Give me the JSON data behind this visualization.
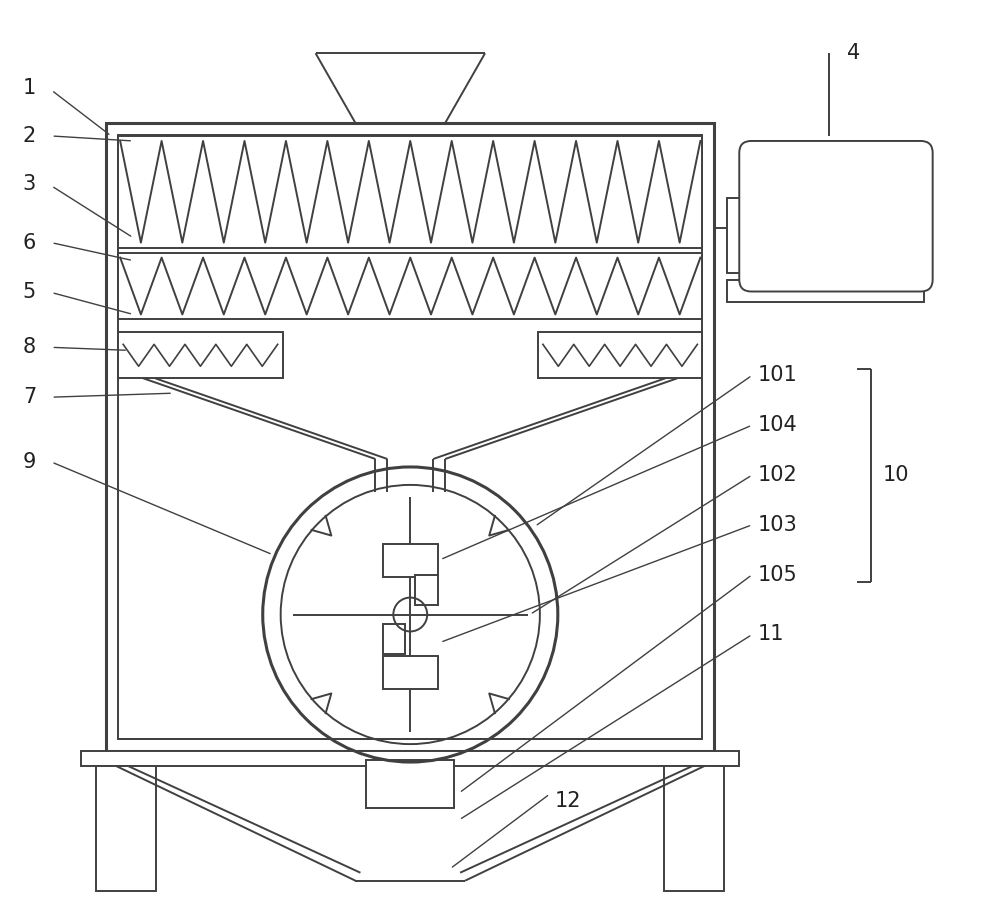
{
  "bg_color": "#ffffff",
  "lc": "#404040",
  "lw": 1.4,
  "tlw": 2.2,
  "figsize": [
    10.0,
    9.07
  ],
  "dpi": 100,
  "xlim": [
    0,
    10
  ],
  "ylim": [
    0,
    9.07
  ],
  "label_fs": 15,
  "label_color": "#222222",
  "ann_lw": 1.0,
  "ann_color": "#404040"
}
